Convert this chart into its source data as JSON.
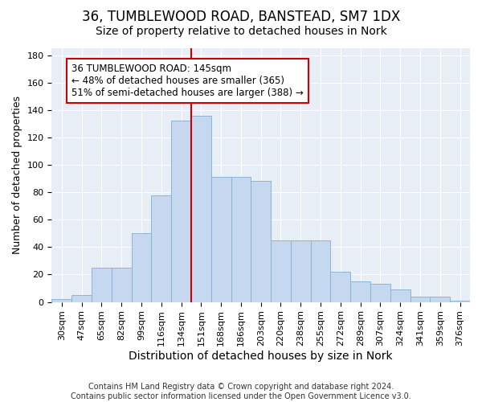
{
  "title": "36, TUMBLEWOOD ROAD, BANSTEAD, SM7 1DX",
  "subtitle": "Size of property relative to detached houses in Nork",
  "xlabel": "Distribution of detached houses by size in Nork",
  "ylabel": "Number of detached properties",
  "categories": [
    "30sqm",
    "47sqm",
    "65sqm",
    "82sqm",
    "99sqm",
    "116sqm",
    "134sqm",
    "151sqm",
    "168sqm",
    "186sqm",
    "203sqm",
    "220sqm",
    "238sqm",
    "255sqm",
    "272sqm",
    "289sqm",
    "307sqm",
    "324sqm",
    "341sqm",
    "359sqm",
    "376sqm"
  ],
  "values": [
    2,
    5,
    25,
    25,
    50,
    78,
    132,
    136,
    91,
    91,
    88,
    45,
    45,
    45,
    22,
    15,
    13,
    9,
    4,
    4,
    1
  ],
  "bar_color": "#c5d8ef",
  "bar_edge_color": "#8ab4d8",
  "vline_x_index": 7,
  "vline_color": "#cc0000",
  "annotation_box_text": "36 TUMBLEWOOD ROAD: 145sqm\n← 48% of detached houses are smaller (365)\n51% of semi-detached houses are larger (388) →",
  "annotation_box_color": "#cc0000",
  "annotation_bg": "#ffffff",
  "ylim": [
    0,
    185
  ],
  "yticks": [
    0,
    20,
    40,
    60,
    80,
    100,
    120,
    140,
    160,
    180
  ],
  "background_color": "#e8eef6",
  "footer": "Contains HM Land Registry data © Crown copyright and database right 2024.\nContains public sector information licensed under the Open Government Licence v3.0.",
  "title_fontsize": 12,
  "subtitle_fontsize": 10,
  "xlabel_fontsize": 10,
  "ylabel_fontsize": 9,
  "tick_fontsize": 8,
  "footer_fontsize": 7,
  "annot_fontsize": 8.5
}
